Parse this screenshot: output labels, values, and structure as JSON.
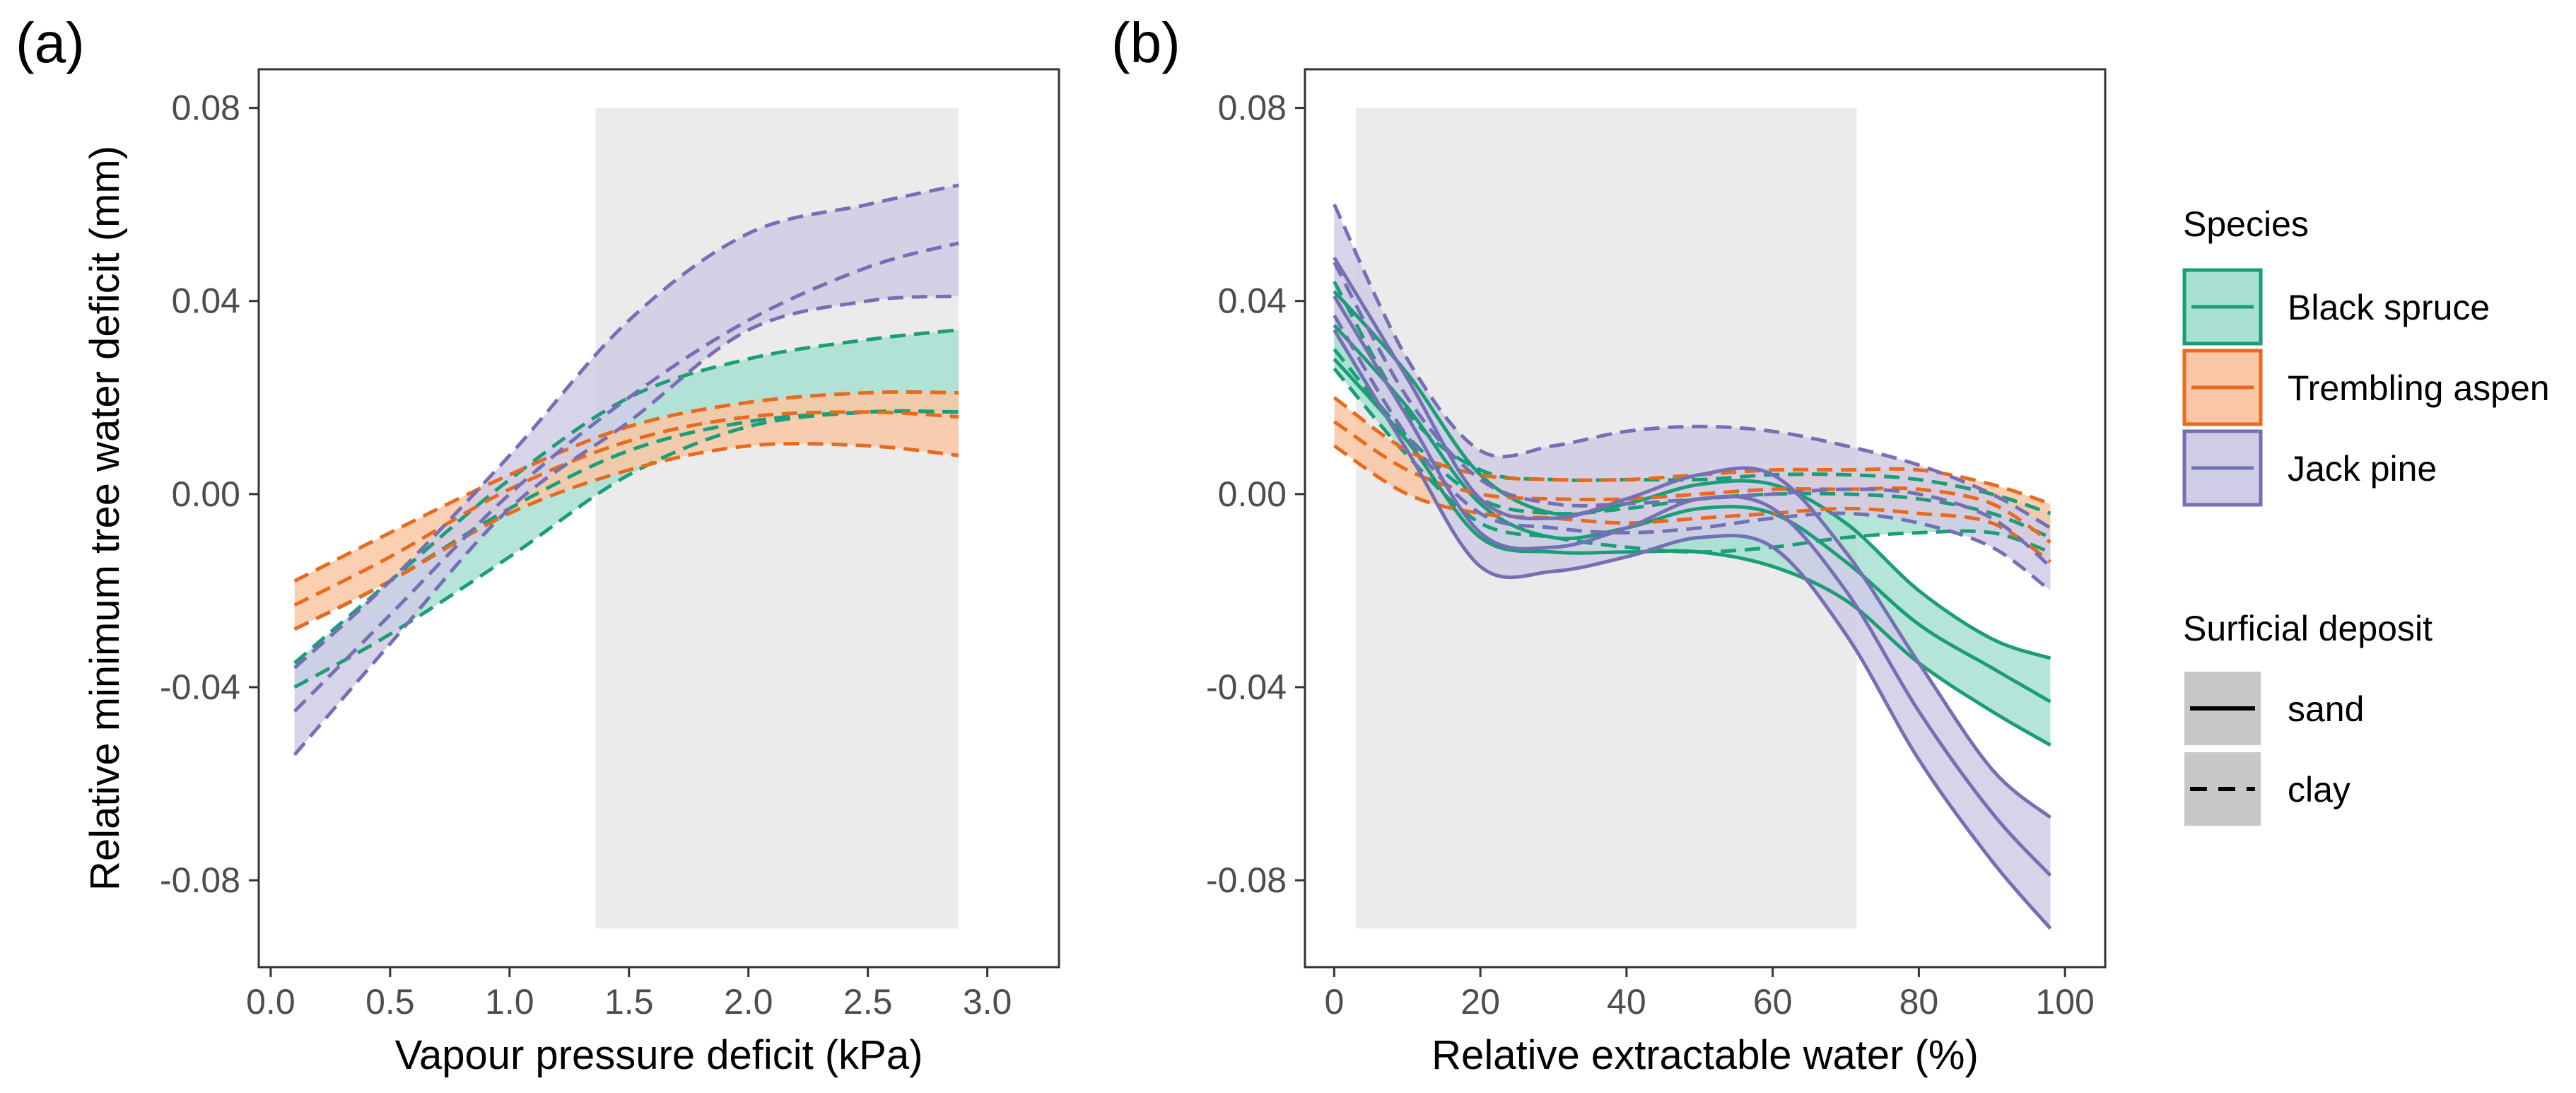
{
  "chart_data": [
    {
      "panel_label": "(a)",
      "type": "line",
      "xlabel": "Vapour pressure deficit (kPa)",
      "ylabel": "Relative minimum tree water deficit (mm)",
      "xlim": [
        -0.05,
        3.3
      ],
      "ylim": [
        -0.098,
        0.088
      ],
      "x_ticks": [
        0.0,
        0.5,
        1.0,
        1.5,
        2.0,
        2.5,
        3.0
      ],
      "x_tick_labels": [
        "0.0",
        "0.5",
        "1.0",
        "1.5",
        "2.0",
        "2.5",
        "3.0"
      ],
      "y_ticks": [
        -0.08,
        -0.04,
        0.0,
        0.04,
        0.08
      ],
      "y_tick_labels": [
        "-0.08",
        "-0.04",
        "0.00",
        "0.04",
        "0.08"
      ],
      "shaded_region": {
        "x": [
          1.36,
          2.88
        ],
        "y": [
          -0.09,
          0.08
        ]
      },
      "series": [
        {
          "species": "Black spruce",
          "deposit": "clay",
          "x": [
            0.1,
            0.5,
            1.0,
            1.5,
            2.0,
            2.5,
            2.88
          ],
          "fit": [
            -0.028,
            -0.018,
            -0.003,
            0.009,
            0.015,
            0.017,
            0.017
          ],
          "lower": [
            -0.04,
            -0.029,
            -0.013,
            0.004,
            0.014,
            0.017,
            0.017
          ],
          "upper": [
            -0.035,
            -0.018,
            0.003,
            0.02,
            0.028,
            0.032,
            0.034
          ]
        },
        {
          "species": "Trembling aspen",
          "deposit": "clay",
          "x": [
            0.1,
            0.5,
            1.0,
            1.5,
            2.0,
            2.5,
            2.88
          ],
          "fit": [
            -0.023,
            -0.013,
            0.001,
            0.011,
            0.016,
            0.017,
            0.016
          ],
          "lower": [
            -0.028,
            -0.018,
            -0.004,
            0.005,
            0.01,
            0.01,
            0.008
          ],
          "upper": [
            -0.018,
            -0.008,
            0.004,
            0.014,
            0.019,
            0.021,
            0.021
          ]
        },
        {
          "species": "Jack pine",
          "deposit": "clay",
          "x": [
            0.1,
            0.5,
            1.0,
            1.5,
            2.0,
            2.5,
            2.88
          ],
          "fit": [
            -0.045,
            -0.025,
            0.0,
            0.02,
            0.036,
            0.047,
            0.052
          ],
          "lower": [
            -0.054,
            -0.031,
            -0.003,
            0.015,
            0.034,
            0.04,
            0.041
          ],
          "upper": [
            -0.036,
            -0.018,
            0.008,
            0.036,
            0.054,
            0.06,
            0.064
          ]
        }
      ]
    },
    {
      "panel_label": "(b)",
      "type": "line",
      "xlabel": "Relative extractable water (%)",
      "ylabel": "",
      "xlim": [
        -4,
        105.5
      ],
      "ylim": [
        -0.098,
        0.088
      ],
      "x_ticks": [
        0,
        20,
        40,
        60,
        80,
        100
      ],
      "x_tick_labels": [
        "0",
        "20",
        "40",
        "60",
        "80",
        "100"
      ],
      "y_ticks": [
        -0.08,
        -0.04,
        0.0,
        0.04,
        0.08
      ],
      "y_tick_labels": [
        "-0.08",
        "-0.04",
        "0.00",
        "0.04",
        "0.08"
      ],
      "shaded_region": {
        "x": [
          3,
          71.5
        ],
        "y": [
          -0.09,
          0.08
        ]
      },
      "series": [
        {
          "species": "Black spruce",
          "deposit": "sand",
          "x": [
            0,
            10,
            20,
            30,
            40,
            50,
            60,
            70,
            80,
            90,
            98
          ],
          "fit": [
            0.035,
            0.018,
            -0.002,
            -0.009,
            -0.007,
            -0.003,
            -0.004,
            -0.014,
            -0.027,
            -0.036,
            -0.043
          ],
          "lower": [
            0.028,
            0.011,
            -0.009,
            -0.012,
            -0.012,
            -0.012,
            -0.015,
            -0.022,
            -0.035,
            -0.045,
            -0.052
          ],
          "upper": [
            0.042,
            0.025,
            0.004,
            -0.004,
            -0.002,
            0.002,
            0.002,
            -0.006,
            -0.02,
            -0.03,
            -0.034
          ]
        },
        {
          "species": "Black spruce",
          "deposit": "clay",
          "x": [
            0,
            10,
            20,
            30,
            40,
            50,
            60,
            70,
            80,
            90,
            98
          ],
          "fit": [
            0.03,
            0.012,
            -0.001,
            -0.004,
            -0.003,
            -0.001,
            0.0,
            0.0,
            -0.001,
            -0.004,
            -0.009
          ],
          "lower": [
            0.026,
            0.008,
            -0.006,
            -0.009,
            -0.011,
            -0.012,
            -0.011,
            -0.009,
            -0.008,
            -0.008,
            -0.012
          ],
          "upper": [
            0.044,
            0.017,
            0.005,
            0.003,
            0.003,
            0.003,
            0.004,
            0.004,
            0.003,
            0.0,
            -0.004
          ]
        },
        {
          "species": "Trembling aspen",
          "deposit": "clay",
          "x": [
            0,
            10,
            20,
            30,
            40,
            50,
            60,
            70,
            80,
            90,
            98
          ],
          "fit": [
            0.015,
            0.005,
            0.0,
            -0.001,
            -0.001,
            0.0,
            0.001,
            0.001,
            0.001,
            -0.002,
            -0.01
          ],
          "lower": [
            0.01,
            0.0,
            -0.004,
            -0.005,
            -0.006,
            -0.005,
            -0.004,
            -0.003,
            -0.004,
            -0.006,
            -0.014
          ],
          "upper": [
            0.02,
            0.009,
            0.004,
            0.003,
            0.003,
            0.004,
            0.005,
            0.005,
            0.005,
            0.002,
            -0.002
          ]
        },
        {
          "species": "Jack pine",
          "deposit": "sand",
          "x": [
            0,
            10,
            20,
            30,
            40,
            50,
            60,
            70,
            80,
            90,
            98
          ],
          "fit": [
            0.041,
            0.016,
            -0.008,
            -0.011,
            -0.007,
            -0.001,
            -0.003,
            -0.02,
            -0.045,
            -0.066,
            -0.079
          ],
          "lower": [
            0.034,
            0.009,
            -0.015,
            -0.016,
            -0.013,
            -0.009,
            -0.011,
            -0.029,
            -0.055,
            -0.076,
            -0.09
          ],
          "upper": [
            0.049,
            0.024,
            -0.001,
            -0.005,
            -0.001,
            0.004,
            0.004,
            -0.012,
            -0.035,
            -0.057,
            -0.067
          ]
        },
        {
          "species": "Jack pine",
          "deposit": "clay",
          "x": [
            0,
            10,
            20,
            30,
            40,
            50,
            60,
            70,
            80,
            90,
            98
          ],
          "fit": [
            0.048,
            0.02,
            0.003,
            -0.002,
            -0.002,
            -0.001,
            0.0,
            0.001,
            0.0,
            -0.005,
            -0.015
          ],
          "lower": [
            0.037,
            0.012,
            -0.004,
            -0.007,
            -0.008,
            -0.007,
            -0.005,
            -0.004,
            -0.006,
            -0.011,
            -0.02
          ],
          "upper": [
            0.06,
            0.028,
            0.009,
            0.01,
            0.013,
            0.014,
            0.013,
            0.01,
            0.006,
            0.0,
            -0.007
          ]
        }
      ]
    }
  ],
  "legend": {
    "species_title": "Species",
    "species": [
      {
        "name": "Black spruce",
        "color": "#1b9e77",
        "fill": "#a8e0d1"
      },
      {
        "name": "Trembling aspen",
        "color": "#e86a1e",
        "fill": "#f9c7a5"
      },
      {
        "name": "Jack pine",
        "color": "#7570b3",
        "fill": "#d0cde6"
      }
    ],
    "deposit_title": "Surficial deposit",
    "deposits": [
      {
        "name": "sand",
        "linetype": "solid"
      },
      {
        "name": "clay",
        "linetype": "dashed"
      }
    ]
  },
  "colors": {
    "Black spruce": "#1b9e77",
    "Trembling aspen": "#e86a1e",
    "Jack pine": "#7570b3",
    "shade": "#ebebeb",
    "legend_key_bg": "#c8c8c8"
  }
}
